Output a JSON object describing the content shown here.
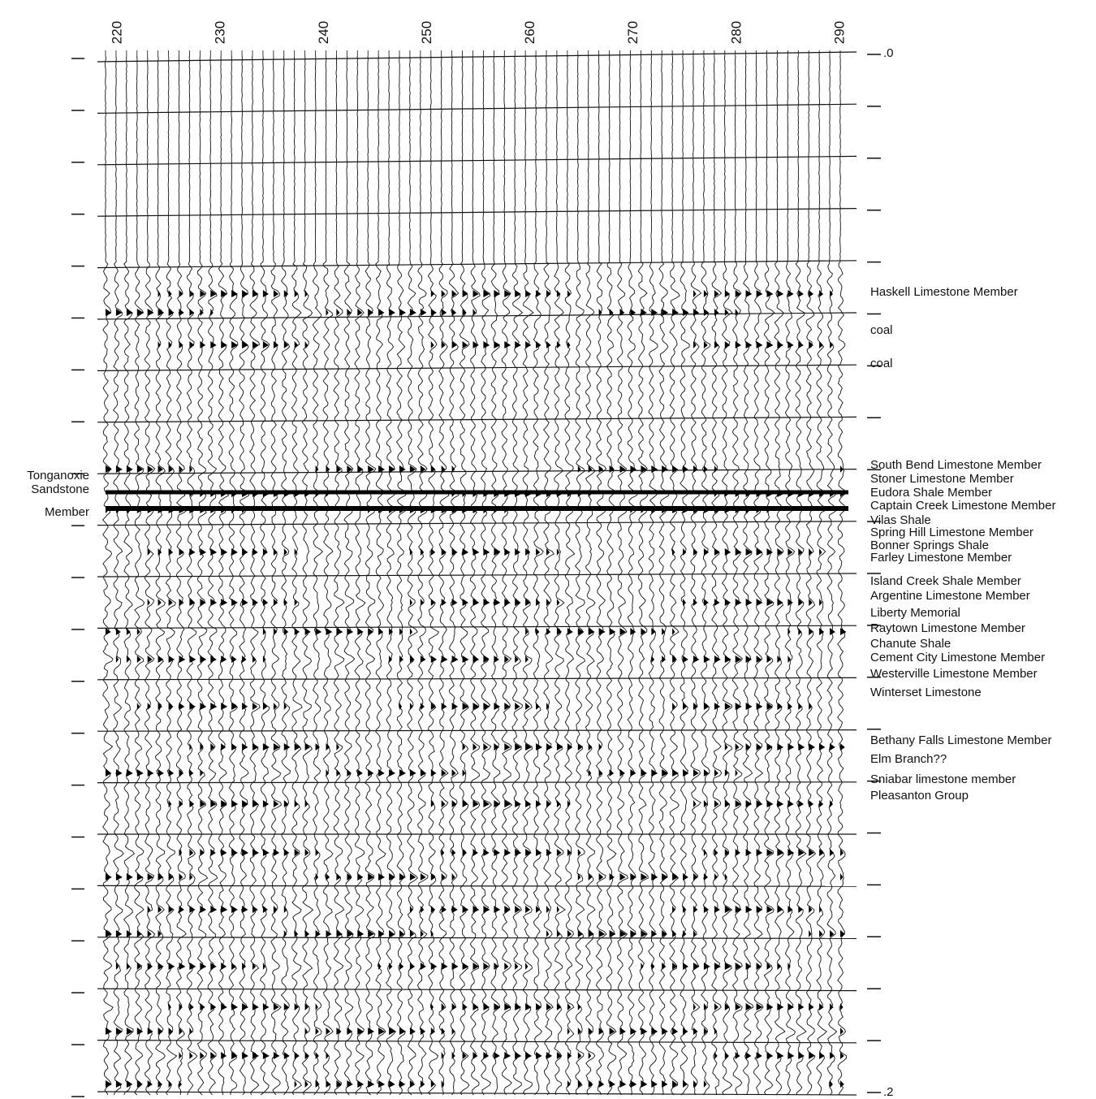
{
  "trace_axis": {
    "labels": [
      "220",
      "230",
      "240",
      "250",
      "260",
      "270",
      "280",
      "290"
    ]
  },
  "time_axis": {
    "labels": [
      ".0",
      ".2"
    ]
  },
  "left_annotation": {
    "lines": [
      "Tonganoxie",
      "Sandstone",
      "Member"
    ]
  },
  "formations": [
    "Haskell Limestone Member",
    "coal",
    "coal",
    "South Bend Limestone Member",
    "Stoner Limestone Member",
    "Eudora Shale Member",
    "Captain Creek Limestone Member",
    "Vilas Shale",
    "Spring Hill Limestone Member",
    "Bonner Springs Shale",
    "Farley Limestone Member",
    "Island Creek Shale Member",
    "Argentine Limestone Member",
    "Liberty Memorial",
    "Raytown Limestone Member",
    "Chanute Shale",
    "Cement City Limestone Member",
    "Westerville Limestone Member",
    "Winterset Limestone",
    "Bethany Falls Limestone Member",
    "Elm Branch??",
    "Sniabar limestone member",
    "Pleasanton Group"
  ]
}
